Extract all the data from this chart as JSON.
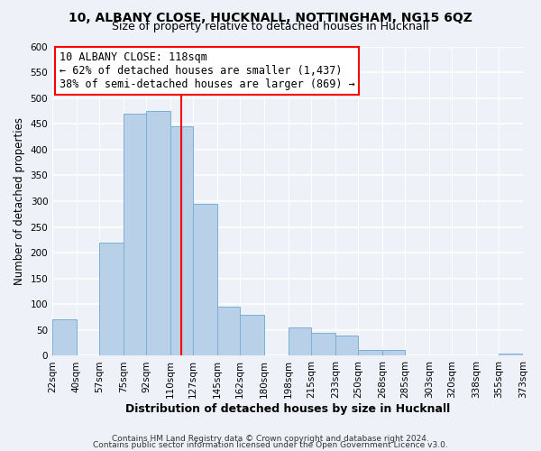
{
  "title": "10, ALBANY CLOSE, HUCKNALL, NOTTINGHAM, NG15 6QZ",
  "subtitle": "Size of property relative to detached houses in Hucknall",
  "xlabel": "Distribution of detached houses by size in Hucknall",
  "ylabel": "Number of detached properties",
  "bar_edges": [
    22,
    40,
    57,
    75,
    92,
    110,
    127,
    145,
    162,
    180,
    198,
    215,
    233,
    250,
    268,
    285,
    303,
    320,
    338,
    355,
    373
  ],
  "bar_heights": [
    70,
    0,
    220,
    470,
    475,
    445,
    295,
    95,
    80,
    0,
    55,
    45,
    40,
    12,
    12,
    0,
    0,
    0,
    0,
    5
  ],
  "bar_color": "#b8d0e8",
  "bar_edgecolor": "#7ab0d4",
  "vline_x": 118,
  "vline_color": "red",
  "annotation_line1": "10 ALBANY CLOSE: 118sqm",
  "annotation_line2": "← 62% of detached houses are smaller (1,437)",
  "annotation_line3": "38% of semi-detached houses are larger (869) →",
  "annotation_box_edgecolor": "red",
  "annotation_box_facecolor": "white",
  "ylim": [
    0,
    600
  ],
  "yticks": [
    0,
    50,
    100,
    150,
    200,
    250,
    300,
    350,
    400,
    450,
    500,
    550,
    600
  ],
  "tick_labels": [
    "22sqm",
    "40sqm",
    "57sqm",
    "75sqm",
    "92sqm",
    "110sqm",
    "127sqm",
    "145sqm",
    "162sqm",
    "180sqm",
    "198sqm",
    "215sqm",
    "233sqm",
    "250sqm",
    "268sqm",
    "285sqm",
    "303sqm",
    "320sqm",
    "338sqm",
    "355sqm",
    "373sqm"
  ],
  "footer_line1": "Contains HM Land Registry data © Crown copyright and database right 2024.",
  "footer_line2": "Contains public sector information licensed under the Open Government Licence v3.0.",
  "title_fontsize": 10,
  "subtitle_fontsize": 9,
  "xlabel_fontsize": 9,
  "ylabel_fontsize": 8.5,
  "tick_fontsize": 7.5,
  "annotation_fontsize": 8.5,
  "footer_fontsize": 6.5,
  "bg_color": "#eef2f8"
}
